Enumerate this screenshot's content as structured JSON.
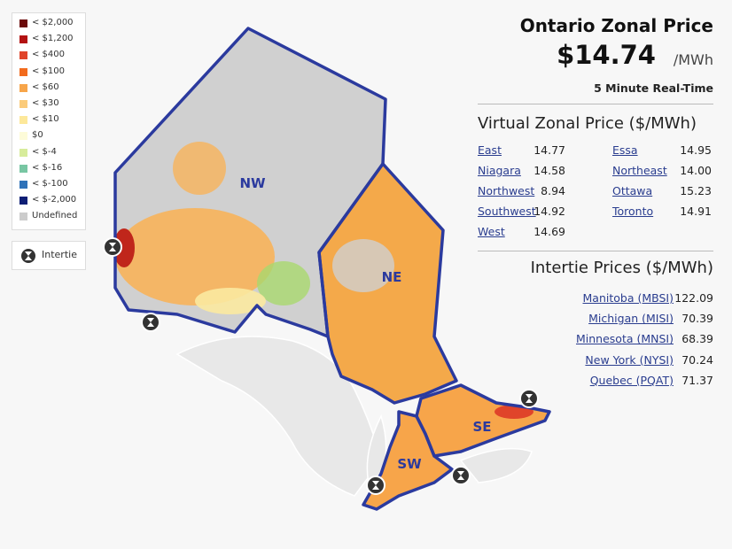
{
  "legend": {
    "items": [
      {
        "label": "< $2,000",
        "color": "#6b0a0a"
      },
      {
        "label": "< $1,200",
        "color": "#b31212"
      },
      {
        "label": "< $400",
        "color": "#e0442a"
      },
      {
        "label": "< $100",
        "color": "#f26b1d"
      },
      {
        "label": "< $60",
        "color": "#f7a54a"
      },
      {
        "label": "< $30",
        "color": "#fbcb7a"
      },
      {
        "label": "< $10",
        "color": "#fde89a"
      },
      {
        "label": "$0",
        "color": "#fdfbd8"
      },
      {
        "label": "< $-4",
        "color": "#d7ec9b"
      },
      {
        "label": "< $-16",
        "color": "#78c6a3"
      },
      {
        "label": "< $-100",
        "color": "#2f72b8"
      },
      {
        "label": "< $-2,000",
        "color": "#0e1f75"
      },
      {
        "label": "Undefined",
        "color": "#cccccc"
      }
    ],
    "intertie": "Intertie"
  },
  "map": {
    "zones": [
      "NW",
      "NE",
      "SE",
      "SW"
    ]
  },
  "header": {
    "title": "Ontario Zonal Price",
    "price": "$14.74",
    "unit": "/MWh",
    "subtitle": "5 Minute Real-Time"
  },
  "virtual_zonal": {
    "title": "Virtual Zonal Price ($/MWh)",
    "zones": [
      {
        "name": "East",
        "value": "14.77"
      },
      {
        "name": "Niagara",
        "value": "14.58"
      },
      {
        "name": "Northwest",
        "value": "8.94"
      },
      {
        "name": "Southwest",
        "value": "14.92"
      },
      {
        "name": "West",
        "value": "14.69"
      },
      {
        "name": "Essa",
        "value": "14.95"
      },
      {
        "name": "Northeast",
        "value": "14.00"
      },
      {
        "name": "Ottawa",
        "value": "15.23"
      },
      {
        "name": "Toronto",
        "value": "14.91"
      }
    ]
  },
  "intertie_prices": {
    "title": "Intertie Prices ($/MWh)",
    "items": [
      {
        "name": "Manitoba (MBSI)",
        "value": "122.09"
      },
      {
        "name": "Michigan (MISI)",
        "value": "70.39"
      },
      {
        "name": "Minnesota (MNSI)",
        "value": "68.39"
      },
      {
        "name": "New York (NYSI)",
        "value": "70.24"
      },
      {
        "name": "Quebec (PQAT)",
        "value": "71.37"
      }
    ]
  }
}
